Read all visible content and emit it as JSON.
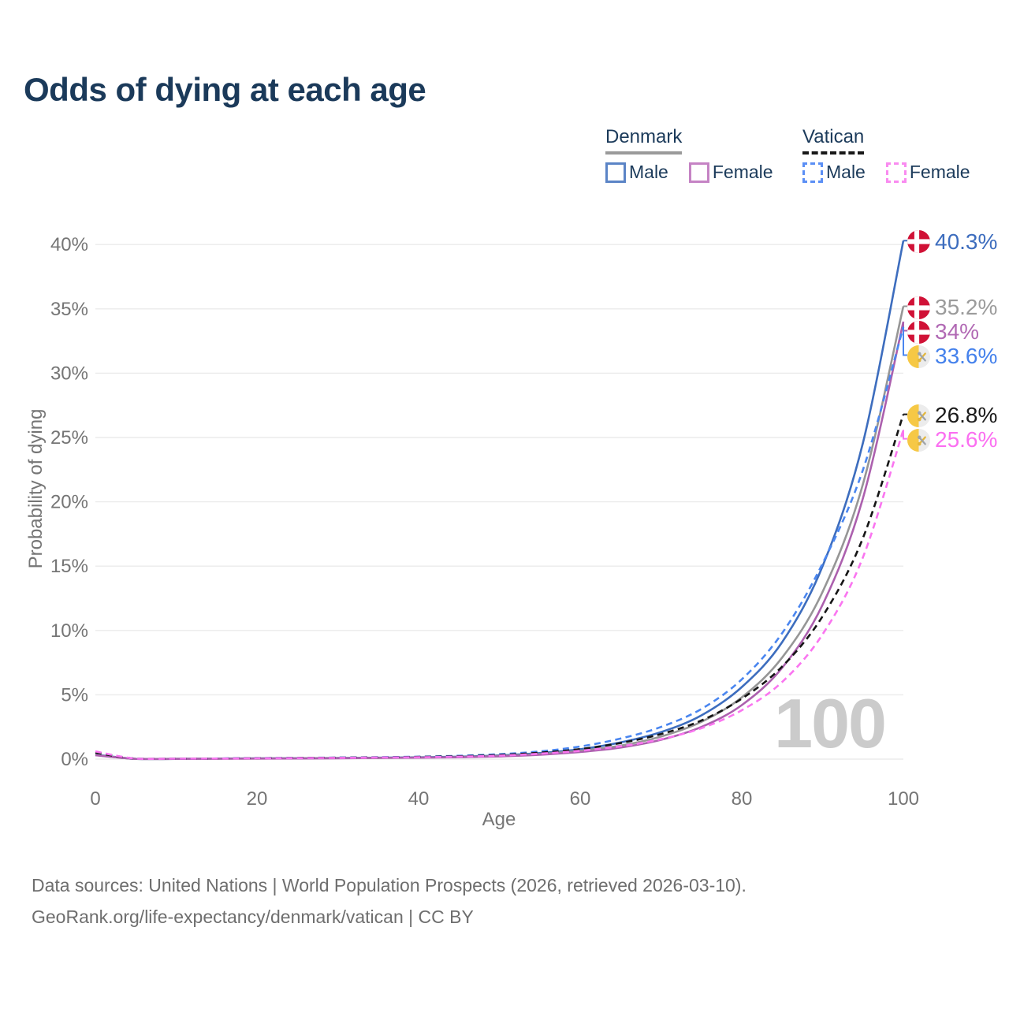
{
  "title": "Odds of dying at each age",
  "watermark": "100",
  "legend": {
    "groups": [
      {
        "label": "Denmark",
        "line_style": "solid",
        "line_color": "#9A9A9A",
        "items": [
          {
            "label": "Male",
            "color": "#5B84C6",
            "dashed": false
          },
          {
            "label": "Female",
            "color": "#C583C4",
            "dashed": false
          }
        ]
      },
      {
        "label": "Vatican",
        "line_style": "dashed",
        "line_color": "#181818",
        "items": [
          {
            "label": "Male",
            "color": "#5B8FF5",
            "dashed": true
          },
          {
            "label": "Female",
            "color": "#F98BF0",
            "dashed": true
          }
        ]
      }
    ]
  },
  "chart_data": {
    "type": "line",
    "title": "Odds of dying at each age",
    "xlabel": "Age",
    "ylabel": "Probability of dying",
    "xlim": [
      0,
      100
    ],
    "ylim_pct": [
      0,
      40
    ],
    "grid": "horizontal",
    "x_ticks": [
      0,
      20,
      40,
      60,
      80,
      100
    ],
    "y_ticks": [
      "0%",
      "5%",
      "10%",
      "15%",
      "20%",
      "25%",
      "30%",
      "35%",
      "40%"
    ],
    "ages": [
      0,
      5,
      10,
      15,
      20,
      25,
      30,
      35,
      40,
      45,
      50,
      55,
      60,
      65,
      70,
      75,
      80,
      85,
      90,
      95,
      100
    ],
    "series": [
      {
        "name": "Denmark Male",
        "flag": "denmark",
        "color": "#3D6DBE",
        "label_color": "#3D6DBE",
        "dashed": false,
        "end_label": "40.3%",
        "values_pct": [
          0.35,
          0.02,
          0.02,
          0.04,
          0.06,
          0.07,
          0.09,
          0.11,
          0.14,
          0.19,
          0.29,
          0.47,
          0.77,
          1.3,
          2.1,
          3.4,
          5.6,
          9.1,
          15.0,
          24.6,
          40.3
        ]
      },
      {
        "name": "Denmark Both sexes",
        "flag": "denmark",
        "color": "#969696",
        "label_color": "#9B9B9B",
        "dashed": false,
        "end_label": "35.2%",
        "values_pct": [
          0.32,
          0.02,
          0.02,
          0.03,
          0.05,
          0.06,
          0.08,
          0.1,
          0.12,
          0.16,
          0.25,
          0.4,
          0.65,
          1.05,
          1.75,
          2.9,
          4.8,
          7.9,
          13.0,
          21.4,
          35.2
        ]
      },
      {
        "name": "Denmark Female",
        "flag": "denmark",
        "color": "#AC60AE",
        "label_color": "#B169B4",
        "dashed": false,
        "end_label": "34%",
        "values_pct": [
          0.3,
          0.02,
          0.02,
          0.03,
          0.04,
          0.05,
          0.07,
          0.09,
          0.11,
          0.14,
          0.21,
          0.34,
          0.55,
          0.9,
          1.5,
          2.5,
          4.2,
          7.1,
          12.0,
          20.3,
          34.0
        ]
      },
      {
        "name": "Vatican Male",
        "flag": "vatican",
        "color": "#4A86F0",
        "label_color": "#4481EC",
        "dashed": true,
        "end_label": "33.6%",
        "values_pct": [
          0.55,
          0.03,
          0.03,
          0.05,
          0.08,
          0.1,
          0.12,
          0.15,
          0.19,
          0.26,
          0.38,
          0.6,
          0.98,
          1.6,
          2.5,
          3.9,
          6.2,
          9.8,
          15.2,
          22.5,
          33.6
        ]
      },
      {
        "name": "Vatican Both sexes",
        "flag": "vatican",
        "color": "#151515",
        "label_color": "#1A1A1A",
        "dashed": true,
        "end_label": "26.8%",
        "values_pct": [
          0.5,
          0.03,
          0.03,
          0.04,
          0.07,
          0.09,
          0.11,
          0.13,
          0.17,
          0.22,
          0.32,
          0.5,
          0.78,
          1.25,
          1.95,
          3.0,
          4.7,
          7.2,
          11.1,
          17.2,
          26.8
        ]
      },
      {
        "name": "Vatican Female",
        "flag": "vatican",
        "color": "#FA75F0",
        "label_color": "#FB6FF1",
        "dashed": true,
        "end_label": "25.6%",
        "values_pct": [
          0.6,
          0.03,
          0.03,
          0.04,
          0.06,
          0.08,
          0.1,
          0.12,
          0.15,
          0.19,
          0.27,
          0.42,
          0.65,
          1.0,
          1.55,
          2.4,
          3.8,
          6.0,
          9.7,
          15.7,
          25.6
        ]
      }
    ],
    "colors": {
      "grid": "#EBEBEB",
      "axis_text": "#757575",
      "flag_denmark_red": "#D01136",
      "flag_vatican_yellow": "#F6C845",
      "flag_vatican_silver": "#ECECEC"
    }
  },
  "source": {
    "line1": "Data sources: United Nations | World Population Prospects (2026, retrieved 2026-03-10).",
    "line2": "GeoRank.org/life-expectancy/denmark/vatican | CC BY"
  }
}
